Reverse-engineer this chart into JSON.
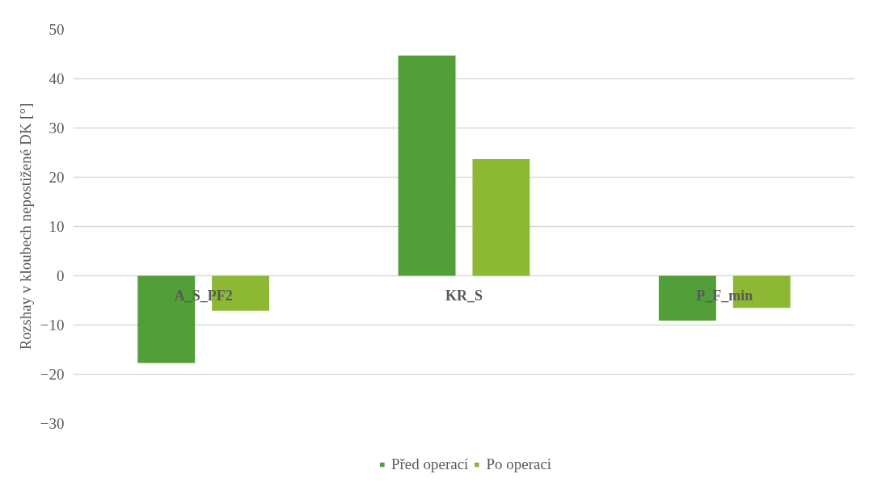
{
  "chart_data": {
    "type": "bar",
    "ylabel": "Rozshay v kloubech nepostižené DK [°]",
    "categories": [
      "A_S_PF2",
      "KR_S",
      "P_F_min"
    ],
    "series": [
      {
        "name": "Před operací",
        "color": "#529e38",
        "values": [
          -17.7,
          44.7,
          -9.1
        ]
      },
      {
        "name": "Po operaci",
        "color": "#8cb833",
        "values": [
          -7.1,
          23.7,
          -6.5
        ]
      }
    ],
    "ylim": [
      -30,
      50
    ],
    "yticks": [
      -30,
      -20,
      -10,
      0,
      10,
      20,
      30,
      40,
      50
    ],
    "grid": "y",
    "legend": "bottom"
  }
}
